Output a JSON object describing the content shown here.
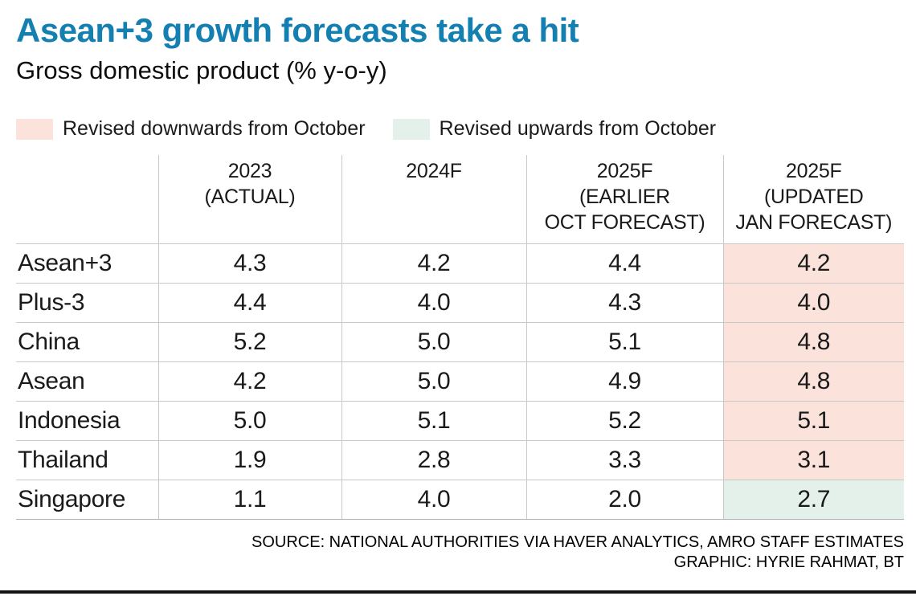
{
  "title": "Asean+3 growth forecasts take a hit",
  "subtitle": "Gross domestic product (% y-o-y)",
  "legend": {
    "down_label": "Revised downwards from October",
    "up_label": "Revised upwards from October"
  },
  "colors": {
    "title": "#147fb1",
    "revised_down_bg": "#fbe3dc",
    "revised_up_bg": "#e4f0ea"
  },
  "table": {
    "headers": {
      "label_col": "",
      "col_2023": "2023\n(ACTUAL)",
      "col_2024f": "2024F",
      "col_2025f_earlier": "2025F\n(EARLIER\nOCT FORECAST)",
      "col_2025f_updated": "2025F\n(UPDATED\nJAN FORECAST)"
    },
    "rows": [
      {
        "label": "Asean+3",
        "values": [
          "4.3",
          "4.2",
          "4.4",
          "4.2"
        ],
        "updated_highlight": "down"
      },
      {
        "label": "Plus-3",
        "values": [
          "4.4",
          "4.0",
          "4.3",
          "4.0"
        ],
        "updated_highlight": "down"
      },
      {
        "label": "China",
        "values": [
          "5.2",
          "5.0",
          "5.1",
          "4.8"
        ],
        "updated_highlight": "down"
      },
      {
        "label": "Asean",
        "values": [
          "4.2",
          "5.0",
          "4.9",
          "4.8"
        ],
        "updated_highlight": "down"
      },
      {
        "label": "Indonesia",
        "values": [
          "5.0",
          "5.1",
          "5.2",
          "5.1"
        ],
        "updated_highlight": "down"
      },
      {
        "label": "Thailand",
        "values": [
          "1.9",
          "2.8",
          "3.3",
          "3.1"
        ],
        "updated_highlight": "down"
      },
      {
        "label": "Singapore",
        "values": [
          "1.1",
          "4.0",
          "2.0",
          "2.7"
        ],
        "updated_highlight": "up"
      }
    ]
  },
  "footer": {
    "source": "SOURCE: NATIONAL AUTHORITIES VIA HAVER ANALYTICS, AMRO STAFF ESTIMATES",
    "credit": "GRAPHIC: HYRIE RAHMAT, BT"
  },
  "chart_data": {
    "type": "table",
    "title": "Asean+3 growth forecasts take a hit",
    "subtitle": "Gross domestic product (% y-o-y)",
    "unit": "% y-o-y GDP growth",
    "categories": [
      "Asean+3",
      "Plus-3",
      "China",
      "Asean",
      "Indonesia",
      "Thailand",
      "Singapore"
    ],
    "series": [
      {
        "name": "2023 (ACTUAL)",
        "values": [
          4.3,
          4.4,
          5.2,
          4.2,
          5.0,
          1.9,
          1.1
        ]
      },
      {
        "name": "2024F",
        "values": [
          4.2,
          4.0,
          5.0,
          5.0,
          5.1,
          2.8,
          4.0
        ]
      },
      {
        "name": "2025F (EARLIER OCT FORECAST)",
        "values": [
          4.4,
          4.3,
          5.1,
          4.9,
          5.2,
          3.3,
          2.0
        ]
      },
      {
        "name": "2025F (UPDATED JAN FORECAST)",
        "values": [
          4.2,
          4.0,
          4.8,
          4.8,
          5.1,
          3.1,
          2.7
        ]
      }
    ],
    "annotations": {
      "revised_downwards_from_october": [
        "Asean+3",
        "Plus-3",
        "China",
        "Asean",
        "Indonesia",
        "Thailand"
      ],
      "revised_upwards_from_october": [
        "Singapore"
      ]
    }
  }
}
